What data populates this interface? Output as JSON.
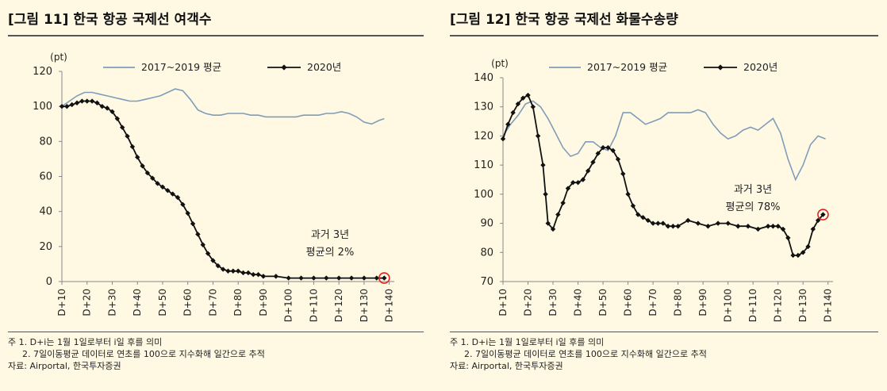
{
  "charts": [
    {
      "title": "[그림 11] 한국 항공 국제선 여객수",
      "notes": [
        "주 1. D+i는 1월 1일로부터 i일 후를 의미",
        "2. 7일이동평균 데이터로 연초를 100으로 지수화해 일간으로 추적"
      ],
      "source": "자료: Airportal, 한국투자증권",
      "annotation_lines": [
        "과거 3년",
        "평균의 2%"
      ],
      "colors": {
        "avg": "#7F9DB9",
        "y2020": "#111111",
        "marker": "#E02020",
        "axis": "#888888"
      }
    },
    {
      "title": "[그림 12] 한국 항공 국제선 화물수송량",
      "notes": [
        "주 1. D+i는 1월 1일로부터 i일 후를 의미",
        "2. 7일이동평균 데이터로 연초를 100으로 지수화해 일간으로 추적"
      ],
      "source": "자료: Airportal, 한국투자증권",
      "annotation_lines": [
        "과거 3년",
        "평균의 78%"
      ],
      "colors": {
        "avg": "#7F9DB9",
        "y2020": "#111111",
        "marker": "#E02020",
        "axis": "#888888"
      }
    }
  ],
  "chart_data": [
    {
      "type": "line",
      "title": "[그림 11] 한국 항공 국제선 여객수",
      "ylabel": "(pt)",
      "ylim": [
        0,
        120
      ],
      "yticks": [
        0,
        20,
        40,
        60,
        80,
        100,
        120
      ],
      "xlim": [
        10,
        142
      ],
      "xticks": [
        "D+10",
        "D+20",
        "D+30",
        "D+40",
        "D+50",
        "D+60",
        "D+70",
        "D+80",
        "D+90",
        "D+100",
        "D+110",
        "D+120",
        "D+130",
        "D+140"
      ],
      "legend": {
        "placement": "top"
      },
      "grid": false,
      "series": [
        {
          "name": "2017~2019 평균",
          "style": "line",
          "x": [
            10,
            13,
            16,
            19,
            22,
            25,
            28,
            31,
            34,
            37,
            40,
            43,
            46,
            49,
            52,
            55,
            58,
            61,
            64,
            67,
            70,
            73,
            76,
            79,
            82,
            85,
            88,
            91,
            94,
            97,
            100,
            103,
            106,
            109,
            112,
            115,
            118,
            121,
            124,
            127,
            130,
            133,
            136,
            138
          ],
          "y": [
            100,
            103,
            106,
            108,
            108,
            107,
            106,
            105,
            104,
            103,
            103,
            104,
            105,
            106,
            108,
            110,
            109,
            104,
            98,
            96,
            95,
            95,
            96,
            96,
            96,
            95,
            95,
            94,
            94,
            94,
            94,
            94,
            95,
            95,
            95,
            96,
            96,
            97,
            96,
            94,
            91,
            90,
            92,
            93
          ]
        },
        {
          "name": "2020년",
          "style": "line-markers",
          "x": [
            10,
            12,
            14,
            16,
            18,
            20,
            22,
            24,
            26,
            28,
            30,
            32,
            34,
            36,
            38,
            40,
            42,
            44,
            46,
            48,
            50,
            52,
            54,
            56,
            58,
            60,
            62,
            64,
            66,
            68,
            70,
            72,
            74,
            76,
            78,
            80,
            82,
            84,
            86,
            88,
            90,
            95,
            100,
            105,
            110,
            115,
            120,
            125,
            130,
            135,
            138
          ],
          "y": [
            100,
            100,
            101,
            102,
            103,
            103,
            103,
            102,
            100,
            99,
            97,
            93,
            88,
            83,
            77,
            71,
            66,
            62,
            59,
            56,
            54,
            52,
            50,
            48,
            44,
            39,
            33,
            27,
            21,
            16,
            12,
            9,
            7,
            6,
            6,
            6,
            5,
            5,
            4,
            4,
            3,
            3,
            2,
            2,
            2,
            2,
            2,
            2,
            2,
            2,
            2
          ]
        }
      ]
    },
    {
      "type": "line",
      "title": "[그림 12] 한국 항공 국제선 화물수송량",
      "ylabel": "(pt)",
      "ylim": [
        70,
        140
      ],
      "yticks": [
        70,
        80,
        90,
        100,
        110,
        120,
        130,
        140
      ],
      "xlim": [
        10,
        142
      ],
      "xticks": [
        "D+10",
        "D+20",
        "D+30",
        "D+40",
        "D+50",
        "D+60",
        "D+70",
        "D+80",
        "D+90",
        "D+100",
        "D+110",
        "D+120",
        "D+130",
        "D+140"
      ],
      "legend": {
        "placement": "top"
      },
      "grid": false,
      "series": [
        {
          "name": "2017~2019 평균",
          "style": "line",
          "x": [
            10,
            13,
            16,
            19,
            22,
            25,
            28,
            31,
            34,
            37,
            40,
            43,
            46,
            49,
            52,
            55,
            58,
            61,
            64,
            67,
            70,
            73,
            76,
            79,
            82,
            85,
            88,
            91,
            94,
            97,
            100,
            103,
            106,
            109,
            112,
            115,
            118,
            121,
            124,
            127,
            130,
            133,
            136,
            139
          ],
          "y": [
            120,
            124,
            127,
            131,
            132,
            130,
            126,
            121,
            116,
            113,
            114,
            118,
            118,
            116,
            115,
            120,
            128,
            128,
            126,
            124,
            125,
            126,
            128,
            128,
            128,
            128,
            129,
            128,
            124,
            121,
            119,
            120,
            122,
            123,
            122,
            124,
            126,
            121,
            112,
            105,
            110,
            117,
            120,
            119
          ]
        },
        {
          "name": "2020년",
          "style": "line-markers",
          "x": [
            10,
            12,
            14,
            16,
            18,
            20,
            22,
            24,
            26,
            27,
            28,
            30,
            32,
            34,
            36,
            38,
            40,
            42,
            44,
            46,
            48,
            50,
            52,
            54,
            56,
            58,
            60,
            62,
            64,
            66,
            68,
            70,
            72,
            74,
            76,
            78,
            80,
            84,
            88,
            92,
            96,
            100,
            104,
            108,
            112,
            116,
            118,
            120,
            122,
            124,
            126,
            128,
            130,
            132,
            134,
            136,
            138
          ],
          "y": [
            119,
            124,
            128,
            131,
            133,
            134,
            130,
            120,
            110,
            100,
            90,
            88,
            93,
            97,
            102,
            104,
            104,
            105,
            108,
            111,
            114,
            116,
            116,
            115,
            112,
            107,
            100,
            96,
            93,
            92,
            91,
            90,
            90,
            90,
            89,
            89,
            89,
            91,
            90,
            89,
            90,
            90,
            89,
            89,
            88,
            89,
            89,
            89,
            88,
            85,
            79,
            79,
            80,
            82,
            88,
            91,
            93
          ]
        }
      ]
    }
  ]
}
